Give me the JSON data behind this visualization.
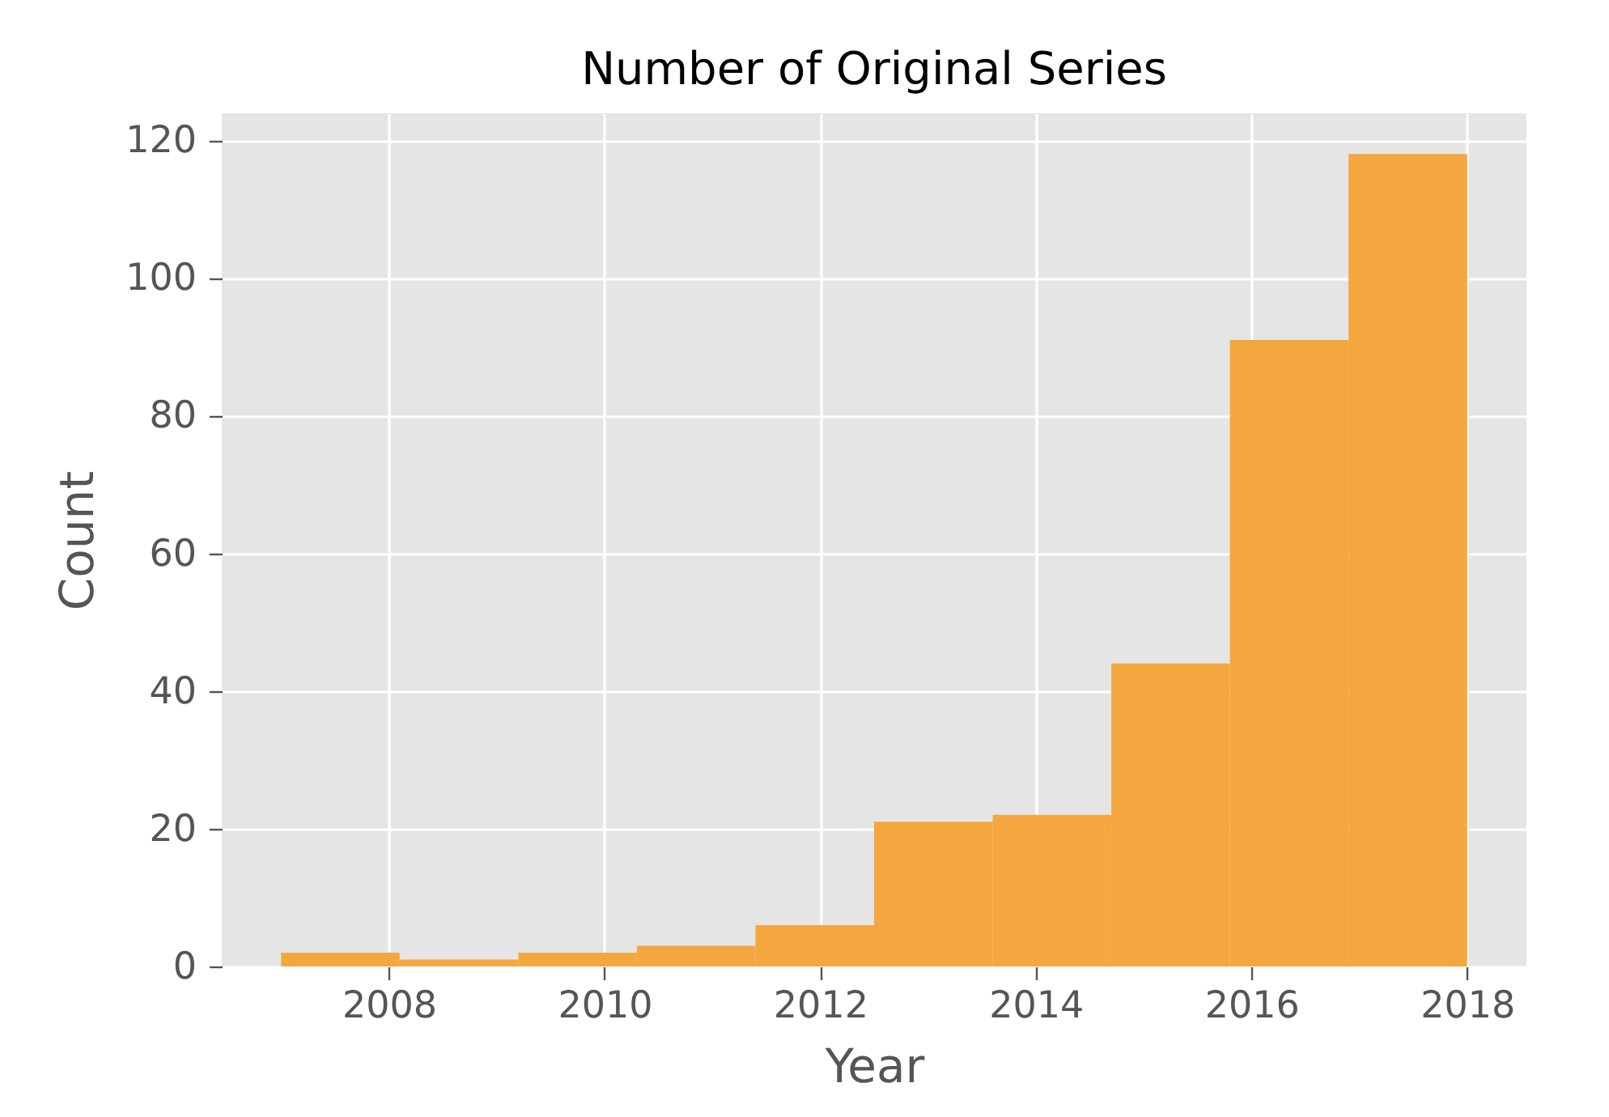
{
  "chart_data": {
    "type": "histogram",
    "title": "Number of Original Series",
    "xlabel": "Year",
    "ylabel": "Count",
    "bins": [
      2007,
      2008.1,
      2009.2,
      2010.3,
      2011.4,
      2012.5,
      2013.6,
      2014.7,
      2015.8,
      2016.9,
      2018
    ],
    "values": [
      2,
      1,
      2,
      3,
      6,
      21,
      22,
      44,
      91,
      118
    ],
    "color": "#f4a73e",
    "xlim": [
      2006.45,
      2018.55
    ],
    "ylim": [
      0,
      123.9
    ],
    "xticks": [
      2008,
      2010,
      2012,
      2014,
      2016,
      2018
    ],
    "yticks": [
      0,
      20,
      40,
      60,
      80,
      100,
      120
    ],
    "grid": true
  }
}
